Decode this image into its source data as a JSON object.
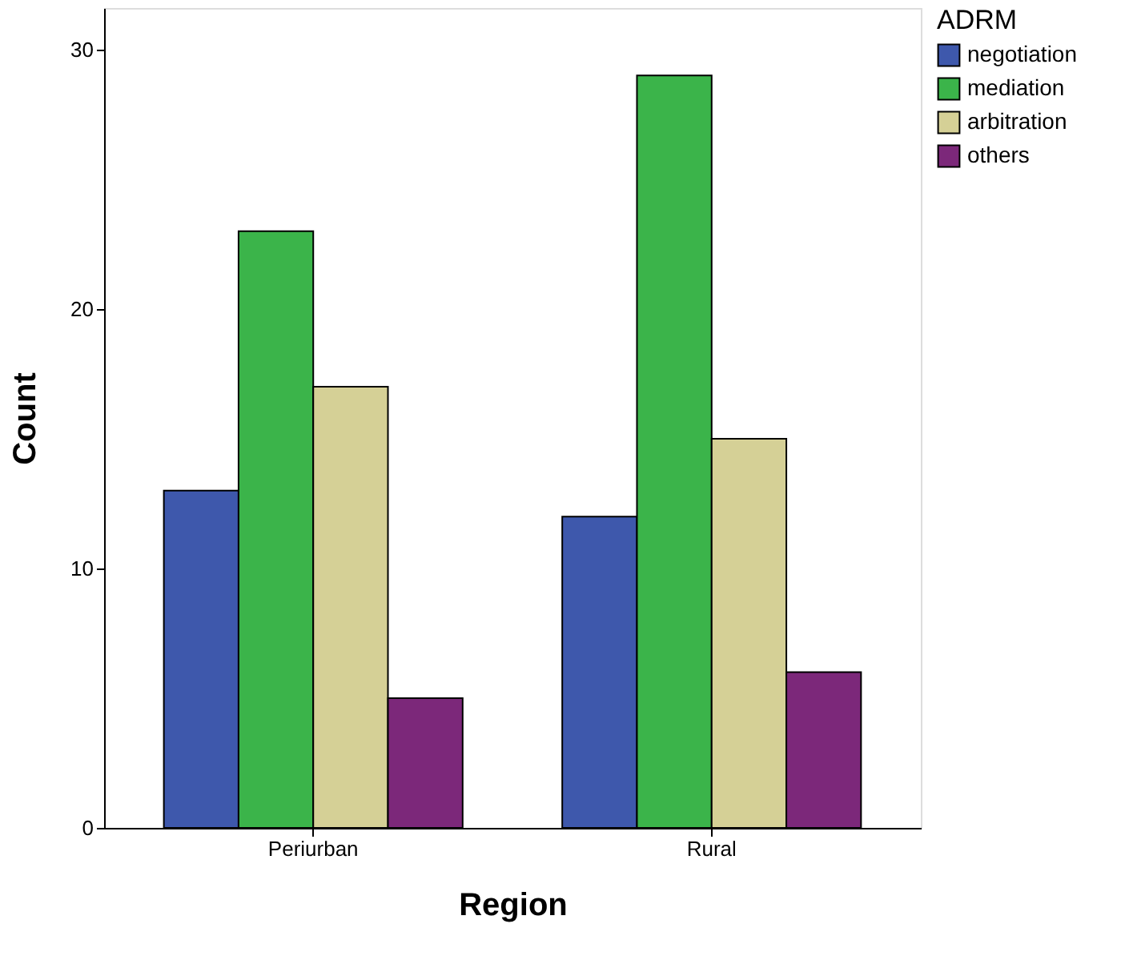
{
  "chart_data": {
    "type": "bar",
    "xlabel": "Region",
    "ylabel": "Count",
    "legend_title": "ADRM",
    "categories": [
      "Periurban",
      "Rural"
    ],
    "series": [
      {
        "name": "negotiation",
        "color": "#3e58ac",
        "values": [
          13,
          12
        ]
      },
      {
        "name": "mediation",
        "color": "#3bb44a",
        "values": [
          23,
          29
        ]
      },
      {
        "name": "arbitration",
        "color": "#d5d096",
        "values": [
          17,
          15
        ]
      },
      {
        "name": "others",
        "color": "#7c287a",
        "values": [
          5,
          6
        ]
      }
    ],
    "ylim": [
      0,
      31.6
    ],
    "yticks": [
      0,
      10,
      20,
      30
    ],
    "grid": false,
    "legend": "right"
  }
}
